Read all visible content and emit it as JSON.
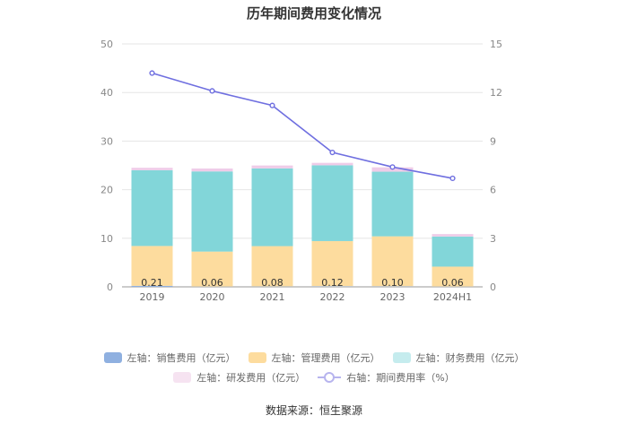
{
  "title": "历年期间费用变化情况",
  "source": "数据来源：恒生聚源",
  "colors": {
    "sales": "#8fb0e0",
    "mgmt": "#fddc9e",
    "finance": "#82d6d9",
    "rnd": "#efcce8",
    "ratio": "#6f6fe0"
  },
  "legend": [
    {
      "key": "sales",
      "label": "左轴：销售费用（亿元）",
      "kind": "bar"
    },
    {
      "key": "mgmt",
      "label": "左轴：管理费用（亿元）",
      "kind": "bar"
    },
    {
      "key": "finance",
      "label": "左轴：财务费用（亿元）",
      "kind": "bar"
    },
    {
      "key": "rnd",
      "label": "左轴：研发费用（亿元）",
      "kind": "bar"
    },
    {
      "key": "ratio",
      "label": "右轴：期间费用率（%）",
      "kind": "line"
    }
  ],
  "chart_data": {
    "type": "bar",
    "stacked": true,
    "title": "历年期间费用变化情况",
    "categories": [
      "2019",
      "2020",
      "2021",
      "2022",
      "2023",
      "2024H1"
    ],
    "y_left": {
      "min": 0,
      "max": 50,
      "ticks": [
        0,
        10,
        20,
        30,
        40,
        50
      ]
    },
    "y_right": {
      "min": 0,
      "max": 15,
      "ticks": [
        0,
        3,
        6,
        9,
        12,
        15
      ]
    },
    "series": [
      {
        "name": "左轴：销售费用（亿元）",
        "key": "sales",
        "axis": "left",
        "type": "bar",
        "values": [
          0.21,
          0.06,
          0.08,
          0.12,
          0.1,
          0.06
        ]
      },
      {
        "name": "左轴：管理费用（亿元）",
        "key": "mgmt",
        "axis": "left",
        "type": "bar",
        "values": [
          8.2,
          7.2,
          8.3,
          9.3,
          10.3,
          4.1
        ]
      },
      {
        "name": "左轴：财务费用（亿元）",
        "key": "finance",
        "axis": "left",
        "type": "bar",
        "values": [
          15.6,
          16.5,
          16.0,
          15.6,
          13.3,
          6.2
        ]
      },
      {
        "name": "左轴：研发费用（亿元）",
        "key": "rnd",
        "axis": "left",
        "type": "bar",
        "values": [
          0.5,
          0.6,
          0.6,
          0.5,
          0.9,
          0.5
        ]
      },
      {
        "name": "右轴：期间费用率（%）",
        "key": "ratio",
        "axis": "right",
        "type": "line",
        "values": [
          13.2,
          12.1,
          11.2,
          8.3,
          7.4,
          6.7
        ]
      }
    ],
    "data_labels": [
      "0.21",
      "0.06",
      "0.08",
      "0.12",
      "0.10",
      "0.06"
    ]
  }
}
